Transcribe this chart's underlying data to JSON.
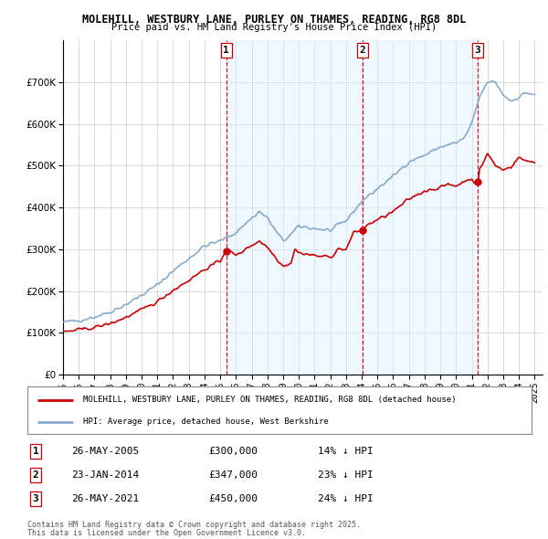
{
  "title": "MOLEHILL, WESTBURY LANE, PURLEY ON THAMES, READING, RG8 8DL",
  "subtitle": "Price paid vs. HM Land Registry's House Price Index (HPI)",
  "legend_label_red": "MOLEHILL, WESTBURY LANE, PURLEY ON THAMES, READING, RG8 8DL (detached house)",
  "legend_label_blue": "HPI: Average price, detached house, West Berkshire",
  "transactions": [
    {
      "num": 1,
      "date": "26-MAY-2005",
      "price": 300000,
      "price_fmt": "£300,000",
      "pct": "14%",
      "x_year": 2005.38
    },
    {
      "num": 2,
      "date": "23-JAN-2014",
      "price": 347000,
      "price_fmt": "£347,000",
      "pct": "23%",
      "x_year": 2014.06
    },
    {
      "num": 3,
      "date": "26-MAY-2021",
      "price": 450000,
      "price_fmt": "£450,000",
      "pct": "24%",
      "x_year": 2021.38
    }
  ],
  "footnote1": "Contains HM Land Registry data © Crown copyright and database right 2025.",
  "footnote2": "This data is licensed under the Open Government Licence v3.0.",
  "ylim": [
    0,
    800000
  ],
  "xlim": [
    1995.0,
    2025.5
  ],
  "yticks": [
    0,
    100000,
    200000,
    300000,
    400000,
    500000,
    600000,
    700000
  ],
  "xticks": [
    1995,
    1996,
    1997,
    1998,
    1999,
    2000,
    2001,
    2002,
    2003,
    2004,
    2005,
    2006,
    2007,
    2008,
    2009,
    2010,
    2011,
    2012,
    2013,
    2014,
    2015,
    2016,
    2017,
    2018,
    2019,
    2020,
    2021,
    2022,
    2023,
    2024,
    2025
  ],
  "bg_color": "#ffffff",
  "plot_bg": "#f0f4ff",
  "shade_color": "#ddeeff",
  "grid_color": "#cccccc",
  "red_color": "#cc0000",
  "blue_color": "#88aacc",
  "vline_color": "#cc0000",
  "shade_alpha": 0.45
}
